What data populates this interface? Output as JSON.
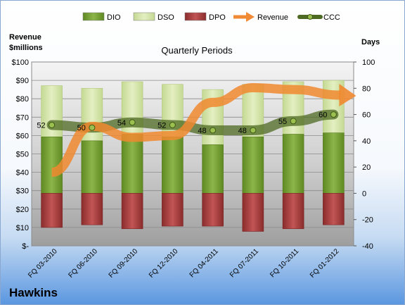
{
  "chart_data": {
    "type": "bar",
    "title": "Quarterly Periods",
    "company": "Hawkins",
    "left_axis": {
      "label_lines": [
        "Revenue",
        "$millions"
      ],
      "ticks": [
        "$-",
        "$10",
        "$20",
        "$30",
        "$40",
        "$50",
        "$60",
        "$70",
        "$80",
        "$90",
        "$100"
      ],
      "range": [
        0,
        100
      ]
    },
    "right_axis": {
      "label": "Days",
      "ticks": [
        "-40",
        "-20",
        "0",
        "20",
        "40",
        "60",
        "80",
        "100"
      ],
      "range": [
        -40,
        100
      ]
    },
    "categories": [
      "FQ 03-2010",
      "FQ 06-2010",
      "FQ 09-2010",
      "FQ 12-2010",
      "FQ 04-2011",
      "FQ 07-2011",
      "FQ 10-2011",
      "FQ 01-2012"
    ],
    "legend": [
      {
        "name": "DIO",
        "kind": "bar",
        "color": "#7fa63a"
      },
      {
        "name": "DSO",
        "kind": "bar",
        "color": "#d9e7b0"
      },
      {
        "name": "DPO",
        "kind": "bar",
        "color": "#b84a4b"
      },
      {
        "name": "Revenue",
        "kind": "arrow",
        "color": "#f08a35"
      },
      {
        "name": "CCC",
        "kind": "line",
        "color": "#5c7a2a"
      }
    ],
    "legend_position": "top",
    "grid": true,
    "series": [
      {
        "name": "DIO",
        "axis": "right",
        "values": [
          43,
          40,
          45,
          43,
          37,
          43,
          45,
          46
        ]
      },
      {
        "name": "DSO",
        "axis": "right",
        "values": [
          39,
          40,
          40,
          40,
          42,
          40,
          40,
          40
        ]
      },
      {
        "name": "DPO",
        "axis": "right",
        "values": [
          -26,
          -24,
          -27,
          -25,
          -25,
          -29,
          -27,
          -24
        ]
      },
      {
        "name": "CCC",
        "axis": "right",
        "values": [
          52,
          50,
          54,
          52,
          48,
          48,
          55,
          60
        ]
      },
      {
        "name": "Revenue",
        "axis": "left",
        "values": [
          40,
          65,
          59,
          60,
          78,
          86,
          85,
          82
        ]
      }
    ]
  }
}
